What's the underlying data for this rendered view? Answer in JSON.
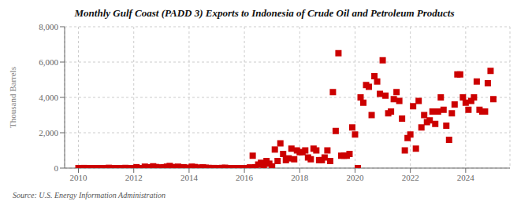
{
  "chart_data": {
    "type": "scatter",
    "title": "Monthly Gulf Coast (PADD 3) Exports to Indonesia of Crude Oil and Petroleum Products",
    "ylabel": "Thousand Barrels",
    "annotations": [
      "Source: U.S. Energy Information Administration"
    ],
    "color": "#cc0000",
    "marker": "square",
    "grid": true,
    "xlim": [
      2009.5,
      2025.6
    ],
    "xticks": [
      2010,
      2012,
      2014,
      2016,
      2018,
      2020,
      2022,
      2024
    ],
    "ylim": [
      0,
      8000
    ],
    "yticks": [
      0,
      {
        "value": 2000,
        "label": "2,000"
      },
      {
        "value": 4000,
        "label": "4,000"
      },
      {
        "value": 6000,
        "label": "6,000"
      },
      {
        "value": 8000,
        "label": "8,000"
      }
    ],
    "x": [
      2010.0,
      2010.1,
      2010.2,
      2010.3,
      2010.4,
      2010.5,
      2010.6,
      2010.7,
      2010.8,
      2010.9,
      2010.95,
      2011.0,
      2011.1,
      2011.2,
      2011.3,
      2011.4,
      2011.5,
      2011.6,
      2011.7,
      2011.8,
      2011.9,
      2012.0,
      2012.1,
      2012.2,
      2012.3,
      2012.4,
      2012.5,
      2012.6,
      2012.7,
      2012.8,
      2012.9,
      2013.0,
      2013.1,
      2013.2,
      2013.3,
      2013.4,
      2013.5,
      2013.6,
      2013.7,
      2013.8,
      2013.9,
      2014.0,
      2014.1,
      2014.2,
      2014.3,
      2014.4,
      2014.5,
      2014.6,
      2014.7,
      2014.8,
      2014.9,
      2015.0,
      2015.1,
      2015.2,
      2015.3,
      2015.4,
      2015.5,
      2015.6,
      2015.7,
      2015.8,
      2015.9,
      2016.0,
      2016.1,
      2016.2,
      2016.3,
      2016.4,
      2016.5,
      2016.6,
      2016.7,
      2016.8,
      2016.9,
      2017.0,
      2017.1,
      2017.2,
      2017.3,
      2017.4,
      2017.5,
      2017.6,
      2017.7,
      2017.8,
      2017.9,
      2018.0,
      2018.1,
      2018.2,
      2018.3,
      2018.4,
      2018.5,
      2018.6,
      2018.7,
      2018.8,
      2018.9,
      2019.0,
      2019.1,
      2019.2,
      2019.3,
      2019.4,
      2019.5,
      2019.6,
      2019.7,
      2019.8,
      2019.9,
      2020.0,
      2020.1,
      2020.2,
      2020.3,
      2020.4,
      2020.5,
      2020.6,
      2020.7,
      2020.8,
      2020.9,
      2021.0,
      2021.1,
      2021.2,
      2021.3,
      2021.4,
      2021.5,
      2021.6,
      2021.7,
      2021.8,
      2021.9,
      2022.0,
      2022.1,
      2022.2,
      2022.3,
      2022.4,
      2022.5,
      2022.6,
      2022.7,
      2022.8,
      2022.9,
      2023.0,
      2023.1,
      2023.2,
      2023.3,
      2023.4,
      2023.5,
      2023.6,
      2023.7,
      2023.8,
      2023.9,
      2024.0,
      2024.1,
      2024.2,
      2024.3,
      2024.4,
      2024.5,
      2024.6,
      2024.7,
      2024.8,
      2024.9,
      2025.0
    ],
    "values": [
      0,
      0,
      5,
      0,
      0,
      0,
      0,
      0,
      0,
      0,
      0,
      0,
      15,
      0,
      0,
      0,
      0,
      0,
      10,
      0,
      0,
      0,
      50,
      0,
      0,
      80,
      50,
      30,
      100,
      60,
      40,
      10,
      50,
      80,
      120,
      60,
      30,
      80,
      20,
      50,
      10,
      20,
      80,
      60,
      10,
      30,
      40,
      20,
      10,
      0,
      5,
      0,
      0,
      10,
      20,
      0,
      0,
      0,
      0,
      0,
      0,
      0,
      0,
      40,
      700,
      50,
      200,
      300,
      80,
      400,
      250,
      100,
      1050,
      400,
      1400,
      800,
      450,
      550,
      1100,
      500,
      1000,
      900,
      900,
      1000,
      600,
      500,
      1100,
      1000,
      450,
      450,
      600,
      1000,
      400,
      4300,
      2100,
      6500,
      700,
      700,
      700,
      800,
      2300,
      1900,
      0,
      4000,
      3700,
      4700,
      4600,
      3000,
      5200,
      4900,
      4200,
      6100,
      4100,
      3100,
      3200,
      3900,
      4300,
      3800,
      2800,
      1000,
      1700,
      1900,
      3500,
      1100,
      3800,
      2300,
      3000,
      2600,
      2700,
      3200,
      2500,
      3200,
      4000,
      3300,
      2400,
      1600,
      3100,
      3600,
      5300,
      5300,
      4000,
      3700,
      3300,
      3800,
      4000,
      4900,
      3300,
      3200,
      3200,
      4800,
      5500,
      3900
    ]
  }
}
